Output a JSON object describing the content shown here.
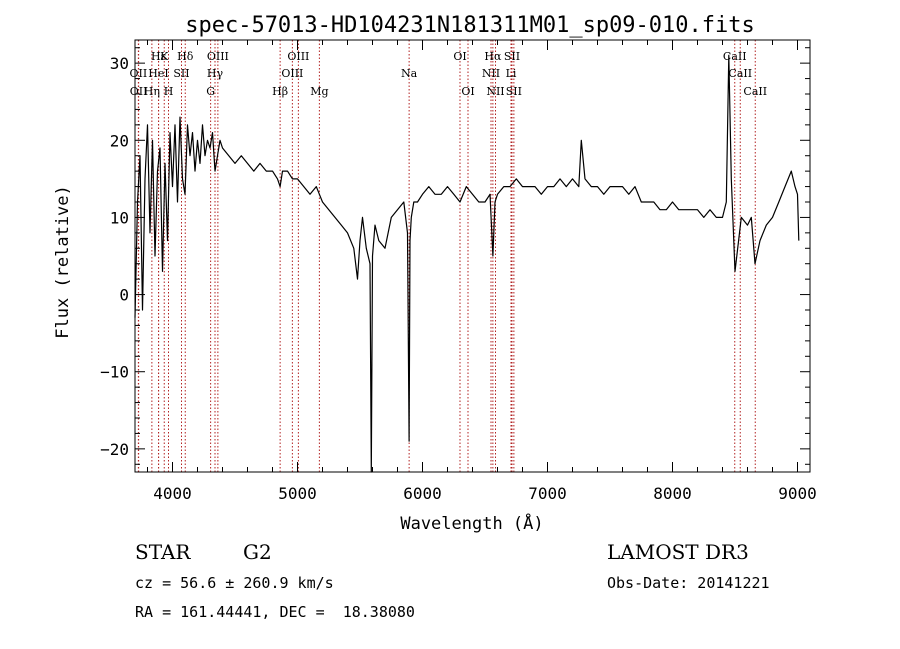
{
  "title": "spec-57013-HD104231N181311M01_sp09-010.fits",
  "info": {
    "object_class": "STAR",
    "subclass": "G2",
    "survey": "LAMOST DR3",
    "redshift_line": "cz = 56.6 ± 260.9 km/s",
    "obs_date_line": "Obs-Date: 20141221",
    "coord_line": "RA = 161.44441, DEC =  18.38080"
  },
  "colors": {
    "spectrum": "#000000",
    "line_markers": "#b22222",
    "axes": "#000000"
  },
  "chart_data": {
    "type": "line",
    "title": "spec-57013-HD104231N181311M01_sp09-010.fits",
    "xlabel": "Wavelength (Å)",
    "ylabel": "Flux (relative)",
    "xlim": [
      3700,
      9100
    ],
    "ylim": [
      -23,
      33
    ],
    "xticks": [
      4000,
      5000,
      6000,
      7000,
      8000,
      9000
    ],
    "yticks": [
      -20,
      -10,
      0,
      10,
      20,
      30
    ],
    "spectral_lines": [
      {
        "label": "Hε",
        "x": 3889,
        "row": 0
      },
      {
        "label": "K",
        "x": 3934,
        "row": 0
      },
      {
        "label": "Hδ",
        "x": 4102,
        "row": 0
      },
      {
        "label": "OIII",
        "x": 4363,
        "row": 0
      },
      {
        "label": "OIII",
        "x": 5007,
        "row": 0
      },
      {
        "label": "OI",
        "x": 6300,
        "row": 0
      },
      {
        "label": "Hα",
        "x": 6563,
        "row": 0
      },
      {
        "label": "SII",
        "x": 6716,
        "row": 0
      },
      {
        "label": "CaII",
        "x": 8498,
        "row": 0
      },
      {
        "label": "OII",
        "x": 3727,
        "row": 1
      },
      {
        "label": "HeI",
        "x": 3888,
        "row": 1
      },
      {
        "label": "SII",
        "x": 4072,
        "row": 1
      },
      {
        "label": "Hγ",
        "x": 4340,
        "row": 1
      },
      {
        "label": "OIII",
        "x": 4959,
        "row": 1
      },
      {
        "label": "Na",
        "x": 5893,
        "row": 1
      },
      {
        "label": "NII",
        "x": 6548,
        "row": 1
      },
      {
        "label": "Li",
        "x": 6708,
        "row": 1
      },
      {
        "label": "CaII",
        "x": 8542,
        "row": 1
      },
      {
        "label": "OII",
        "x": 3729,
        "row": 2
      },
      {
        "label": "Hη",
        "x": 3835,
        "row": 2
      },
      {
        "label": "H",
        "x": 3968,
        "row": 2
      },
      {
        "label": "G",
        "x": 4305,
        "row": 2
      },
      {
        "label": "Hβ",
        "x": 4861,
        "row": 2
      },
      {
        "label": "Mg",
        "x": 5175,
        "row": 2
      },
      {
        "label": "OI",
        "x": 6364,
        "row": 2
      },
      {
        "label": "NII",
        "x": 6584,
        "row": 2
      },
      {
        "label": "SII",
        "x": 6731,
        "row": 2
      },
      {
        "label": "CaII",
        "x": 8662,
        "row": 2
      }
    ],
    "series": [
      {
        "x": [
          3700,
          3720,
          3740,
          3760,
          3780,
          3800,
          3820,
          3840,
          3860,
          3880,
          3900,
          3920,
          3940,
          3960,
          3980,
          4000,
          4020,
          4040,
          4060,
          4080,
          4100,
          4120,
          4140,
          4160,
          4180,
          4200,
          4220,
          4240,
          4260,
          4280,
          4300,
          4320,
          4340,
          4360,
          4380,
          4400,
          4450,
          4500,
          4550,
          4600,
          4650,
          4700,
          4750,
          4800,
          4840,
          4861,
          4880,
          4920,
          4960,
          5000,
          5050,
          5100,
          5150,
          5175,
          5200,
          5250,
          5300,
          5350,
          5400,
          5450,
          5480,
          5500,
          5520,
          5550,
          5580,
          5590,
          5600,
          5620,
          5650,
          5700,
          5750,
          5800,
          5850,
          5880,
          5893,
          5900,
          5910,
          5930,
          5960,
          6000,
          6050,
          6100,
          6150,
          6200,
          6250,
          6300,
          6350,
          6400,
          6450,
          6500,
          6540,
          6563,
          6580,
          6600,
          6650,
          6700,
          6750,
          6800,
          6850,
          6900,
          6950,
          7000,
          7050,
          7100,
          7150,
          7200,
          7250,
          7270,
          7300,
          7350,
          7400,
          7450,
          7500,
          7550,
          7600,
          7650,
          7700,
          7750,
          7800,
          7850,
          7900,
          7950,
          8000,
          8050,
          8100,
          8150,
          8200,
          8250,
          8300,
          8350,
          8400,
          8430,
          8450,
          8470,
          8500,
          8550,
          8600,
          8630,
          8660,
          8700,
          8750,
          8800,
          8850,
          8900,
          8950,
          8980,
          9000,
          9010
        ],
        "y": [
          -3,
          12,
          18,
          -2,
          15,
          22,
          8,
          20,
          5,
          16,
          19,
          3,
          17,
          7,
          21,
          14,
          22,
          12,
          23,
          15,
          13,
          22,
          18,
          21,
          16,
          20,
          17,
          22,
          18,
          20,
          19,
          21,
          16,
          18,
          20,
          19,
          18,
          17,
          18,
          17,
          16,
          17,
          16,
          16,
          15,
          14,
          16,
          16,
          15,
          15,
          14,
          13,
          14,
          13,
          12,
          11,
          10,
          9,
          8,
          6,
          2,
          7,
          10,
          6,
          4,
          -23,
          5,
          9,
          7,
          6,
          10,
          11,
          12,
          8,
          -19,
          7,
          10,
          12,
          12,
          13,
          14,
          13,
          13,
          14,
          13,
          12,
          14,
          13,
          12,
          12,
          13,
          5,
          12,
          13,
          14,
          14,
          15,
          14,
          14,
          14,
          13,
          14,
          14,
          15,
          14,
          15,
          14,
          20,
          15,
          14,
          14,
          13,
          14,
          14,
          14,
          13,
          14,
          12,
          12,
          12,
          11,
          11,
          12,
          11,
          11,
          11,
          11,
          10,
          11,
          10,
          10,
          12,
          31,
          15,
          3,
          10,
          9,
          10,
          4,
          7,
          9,
          10,
          12,
          14,
          16,
          14,
          13,
          7
        ]
      }
    ]
  }
}
